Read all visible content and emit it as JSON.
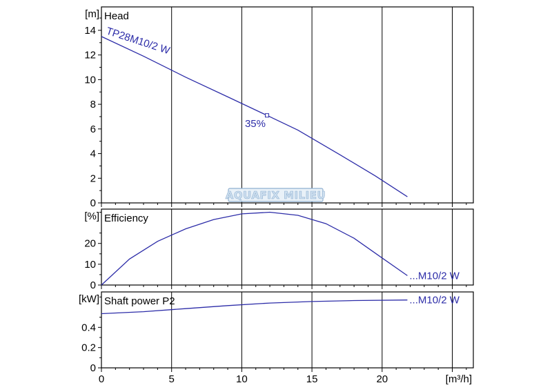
{
  "chart_data": [
    {
      "type": "line",
      "title": "Head",
      "unit": "[m]",
      "ylim": [
        0,
        15.9
      ],
      "yticks": [
        0,
        2,
        4,
        6,
        8,
        10,
        12,
        14
      ],
      "xlim": [
        0,
        26.5
      ],
      "grid": true,
      "series": [
        {
          "name": "TP28M10/2 W",
          "x": [
            0,
            3,
            6,
            9,
            11.8,
            14,
            17,
            19.5,
            21.8
          ],
          "y": [
            13.5,
            11.9,
            10.2,
            8.6,
            7.1,
            5.9,
            3.9,
            2.2,
            0.5
          ]
        }
      ],
      "annotations": [
        {
          "text": "35%",
          "x": 11.8,
          "y": 7.1
        }
      ]
    },
    {
      "type": "line",
      "title": "Efficiency",
      "unit": "[%]",
      "ylim": [
        0,
        36.5
      ],
      "yticks": [
        0,
        10,
        20
      ],
      "xlim": [
        0,
        26.5
      ],
      "grid": true,
      "series": [
        {
          "name": "...M10/2 W",
          "x": [
            0,
            2,
            4,
            6,
            8,
            10,
            12,
            14,
            16,
            18,
            20,
            21.8
          ],
          "y": [
            0,
            12.5,
            21,
            27,
            31.5,
            34.2,
            35,
            33.5,
            29.5,
            22.5,
            13,
            4.5
          ]
        }
      ]
    },
    {
      "type": "line",
      "title": "Shaft power P2",
      "unit": "[kW]",
      "ylim": [
        0,
        0.75
      ],
      "yticks": [
        0,
        0.2,
        0.4
      ],
      "ytick_labels": [
        "0",
        "0.2",
        "0.4"
      ],
      "xlim": [
        0,
        26.5
      ],
      "xticks": [
        0,
        5,
        10,
        15,
        20
      ],
      "xunit": "[m³/h]",
      "grid": true,
      "series": [
        {
          "name": "...M10/2 W",
          "x": [
            0,
            3,
            6,
            9,
            12,
            15,
            18,
            21.8
          ],
          "y": [
            0.535,
            0.555,
            0.585,
            0.615,
            0.64,
            0.655,
            0.665,
            0.67
          ]
        }
      ]
    }
  ],
  "watermark": "AQUAFIX MILIEU",
  "colors": {
    "curve": "#2c2ca8",
    "grid": "#000000"
  }
}
